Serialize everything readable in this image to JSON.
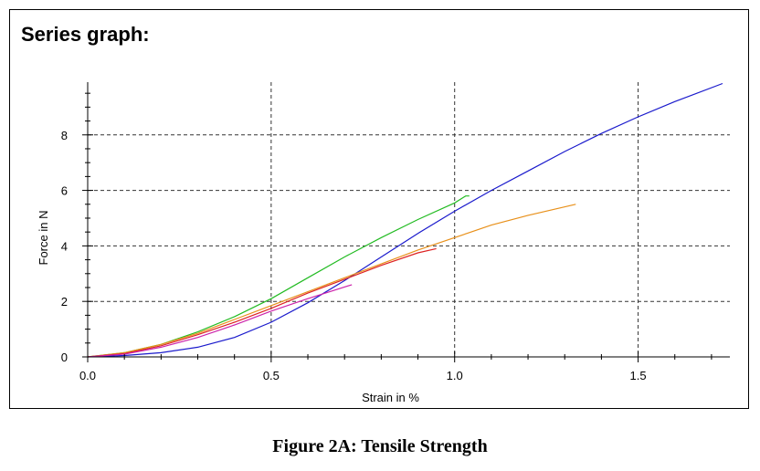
{
  "panel": {
    "title": "Series graph:"
  },
  "caption": "Figure 2A: Tensile Strength",
  "chart_data": {
    "type": "line",
    "xlabel": "Strain in %",
    "ylabel": "Force in N",
    "xlim": [
      0,
      1.75
    ],
    "ylim": [
      0,
      9.9
    ],
    "xticks": [
      0.0,
      0.5,
      1.0,
      1.5
    ],
    "xtick_labels": [
      "0.0",
      "0.5",
      "1.0",
      "1.5"
    ],
    "yticks": [
      0,
      2,
      4,
      6,
      8
    ],
    "ytick_labels": [
      "0",
      "2",
      "4",
      "6",
      "8"
    ],
    "grid": "dashed",
    "series": [
      {
        "color": "#1a1acc",
        "x": [
          0,
          0.1,
          0.2,
          0.3,
          0.4,
          0.5,
          0.6,
          0.7,
          0.8,
          0.9,
          1.0,
          1.1,
          1.2,
          1.3,
          1.4,
          1.5,
          1.6,
          1.73
        ],
        "y": [
          0,
          0.05,
          0.15,
          0.35,
          0.7,
          1.25,
          1.95,
          2.75,
          3.6,
          4.45,
          5.25,
          6.0,
          6.7,
          7.4,
          8.05,
          8.65,
          9.2,
          9.85
        ]
      },
      {
        "color": "#22bb22",
        "x": [
          0,
          0.1,
          0.2,
          0.3,
          0.4,
          0.5,
          0.6,
          0.7,
          0.8,
          0.9,
          1.0,
          1.03,
          1.04
        ],
        "y": [
          0,
          0.15,
          0.45,
          0.9,
          1.45,
          2.1,
          2.85,
          3.6,
          4.3,
          4.95,
          5.55,
          5.8,
          5.8
        ]
      },
      {
        "color": "#e8901a",
        "x": [
          0,
          0.1,
          0.2,
          0.3,
          0.4,
          0.5,
          0.6,
          0.7,
          0.8,
          0.9,
          1.0,
          1.1,
          1.2,
          1.33
        ],
        "y": [
          0,
          0.15,
          0.45,
          0.85,
          1.35,
          1.85,
          2.35,
          2.85,
          3.35,
          3.85,
          4.3,
          4.75,
          5.1,
          5.5
        ]
      },
      {
        "color": "#dd2222",
        "x": [
          0,
          0.1,
          0.2,
          0.3,
          0.4,
          0.5,
          0.6,
          0.7,
          0.8,
          0.9,
          0.95
        ],
        "y": [
          0,
          0.12,
          0.4,
          0.8,
          1.25,
          1.75,
          2.3,
          2.8,
          3.3,
          3.75,
          3.9
        ]
      },
      {
        "color": "#cc22aa",
        "x": [
          0,
          0.1,
          0.2,
          0.3,
          0.4,
          0.5,
          0.6,
          0.72
        ],
        "y": [
          0,
          0.1,
          0.35,
          0.7,
          1.15,
          1.65,
          2.1,
          2.6
        ]
      }
    ]
  }
}
